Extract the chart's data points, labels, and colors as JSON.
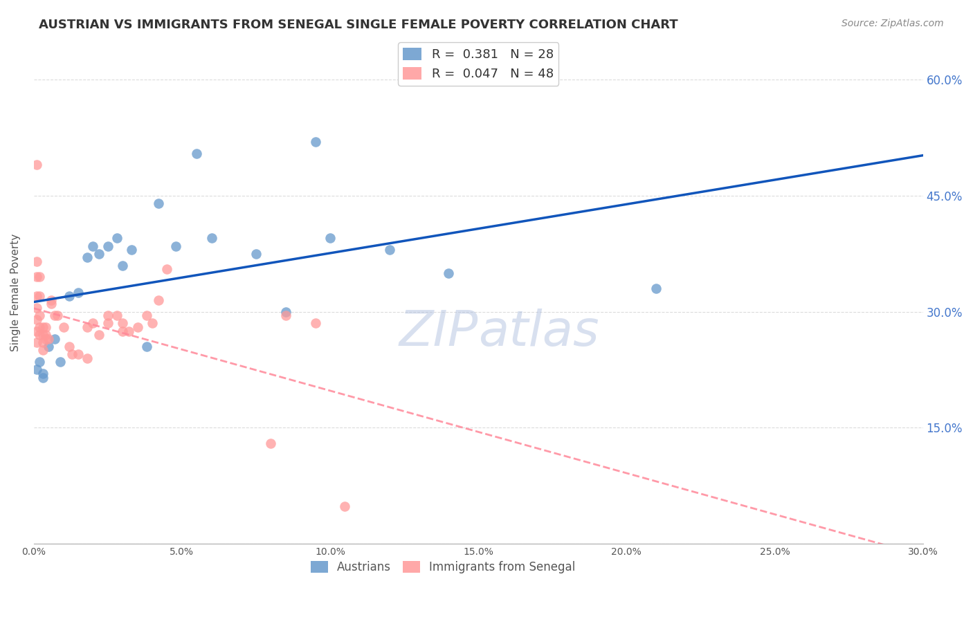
{
  "title": "AUSTRIAN VS IMMIGRANTS FROM SENEGAL SINGLE FEMALE POVERTY CORRELATION CHART",
  "source": "Source: ZipAtlas.com",
  "ylabel": "Single Female Poverty",
  "xlim": [
    0.0,
    0.3
  ],
  "ylim": [
    0.0,
    0.65
  ],
  "xticks": [
    0.0,
    0.05,
    0.1,
    0.15,
    0.2,
    0.25,
    0.3
  ],
  "xtick_labels": [
    "0.0%",
    "5.0%",
    "10.0%",
    "15.0%",
    "20.0%",
    "25.0%",
    "30.0%"
  ],
  "ytick_labels_right": [
    "15.0%",
    "30.0%",
    "45.0%",
    "60.0%"
  ],
  "ytick_positions_right": [
    0.15,
    0.3,
    0.45,
    0.6
  ],
  "legend_r1": "R =  0.381   N = 28",
  "legend_r2": "R =  0.047   N = 48",
  "legend_label1": "Austrians",
  "legend_label2": "Immigrants from Senegal",
  "blue_color": "#6699CC",
  "pink_color": "#FF9999",
  "line_blue": "#1155BB",
  "line_pink": "#FF8899",
  "watermark": "ZIPatlas",
  "austrians_x": [
    0.001,
    0.002,
    0.003,
    0.003,
    0.005,
    0.007,
    0.009,
    0.012,
    0.015,
    0.018,
    0.02,
    0.022,
    0.025,
    0.028,
    0.03,
    0.033,
    0.038,
    0.042,
    0.048,
    0.055,
    0.06,
    0.075,
    0.085,
    0.095,
    0.1,
    0.12,
    0.14,
    0.21
  ],
  "austrians_y": [
    0.225,
    0.235,
    0.22,
    0.215,
    0.255,
    0.265,
    0.235,
    0.32,
    0.325,
    0.37,
    0.385,
    0.375,
    0.385,
    0.395,
    0.36,
    0.38,
    0.255,
    0.44,
    0.385,
    0.505,
    0.395,
    0.375,
    0.3,
    0.52,
    0.395,
    0.38,
    0.35,
    0.33
  ],
  "senegal_x": [
    0.001,
    0.001,
    0.001,
    0.001,
    0.001,
    0.001,
    0.001,
    0.001,
    0.002,
    0.002,
    0.002,
    0.002,
    0.002,
    0.003,
    0.003,
    0.003,
    0.003,
    0.004,
    0.004,
    0.004,
    0.005,
    0.006,
    0.006,
    0.007,
    0.008,
    0.01,
    0.012,
    0.013,
    0.015,
    0.018,
    0.018,
    0.02,
    0.022,
    0.025,
    0.025,
    0.028,
    0.03,
    0.03,
    0.032,
    0.035,
    0.038,
    0.04,
    0.042,
    0.045,
    0.08,
    0.085,
    0.095,
    0.105
  ],
  "senegal_y": [
    0.49,
    0.365,
    0.345,
    0.32,
    0.305,
    0.29,
    0.275,
    0.26,
    0.345,
    0.32,
    0.295,
    0.28,
    0.27,
    0.28,
    0.27,
    0.26,
    0.25,
    0.28,
    0.27,
    0.265,
    0.265,
    0.315,
    0.31,
    0.295,
    0.295,
    0.28,
    0.255,
    0.245,
    0.245,
    0.24,
    0.28,
    0.285,
    0.27,
    0.295,
    0.285,
    0.295,
    0.285,
    0.275,
    0.275,
    0.28,
    0.295,
    0.285,
    0.315,
    0.355,
    0.13,
    0.295,
    0.285,
    0.048
  ]
}
